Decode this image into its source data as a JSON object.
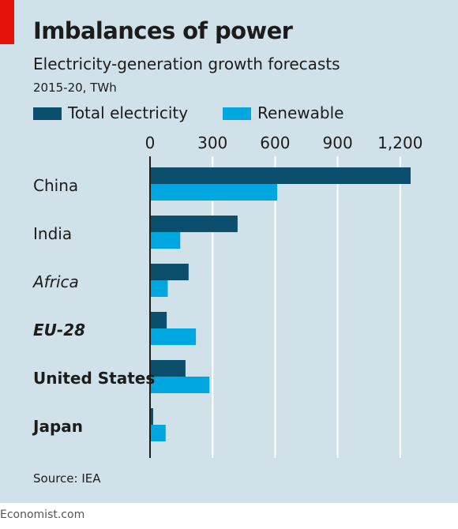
{
  "header": {
    "title": "Imbalances of power",
    "subtitle": "Electricity-generation growth forecasts",
    "units": "2015-20, TWh"
  },
  "footer": {
    "source": "Source: IEA",
    "brand": "Economist.com"
  },
  "colors": {
    "total": "#0b4f6c",
    "renewable": "#00a6e0",
    "accent": "#e3120b",
    "background": "#d0e1e9"
  },
  "chart_data": {
    "type": "bar",
    "orientation": "horizontal",
    "title": "Imbalances of power",
    "subtitle": "Electricity-generation growth forecasts",
    "units": "2015-20, TWh",
    "categories": [
      "China",
      "India",
      "Africa",
      "EU-28",
      "United States",
      "Japan"
    ],
    "category_styles": [
      "normal",
      "normal",
      "italic",
      "bold-italic",
      "bold",
      "bold"
    ],
    "series": [
      {
        "name": "Total electricity",
        "values": [
          1250,
          420,
          185,
          80,
          170,
          15
        ]
      },
      {
        "name": "Renewable",
        "values": [
          610,
          145,
          85,
          220,
          285,
          75
        ]
      }
    ],
    "xlim": [
      0,
      1300
    ],
    "xticks": [
      0,
      300,
      600,
      900,
      1200
    ],
    "xtick_labels": [
      "0",
      "300",
      "600",
      "900",
      "1,200"
    ],
    "grid": "vertical",
    "legend_position": "top-left"
  }
}
